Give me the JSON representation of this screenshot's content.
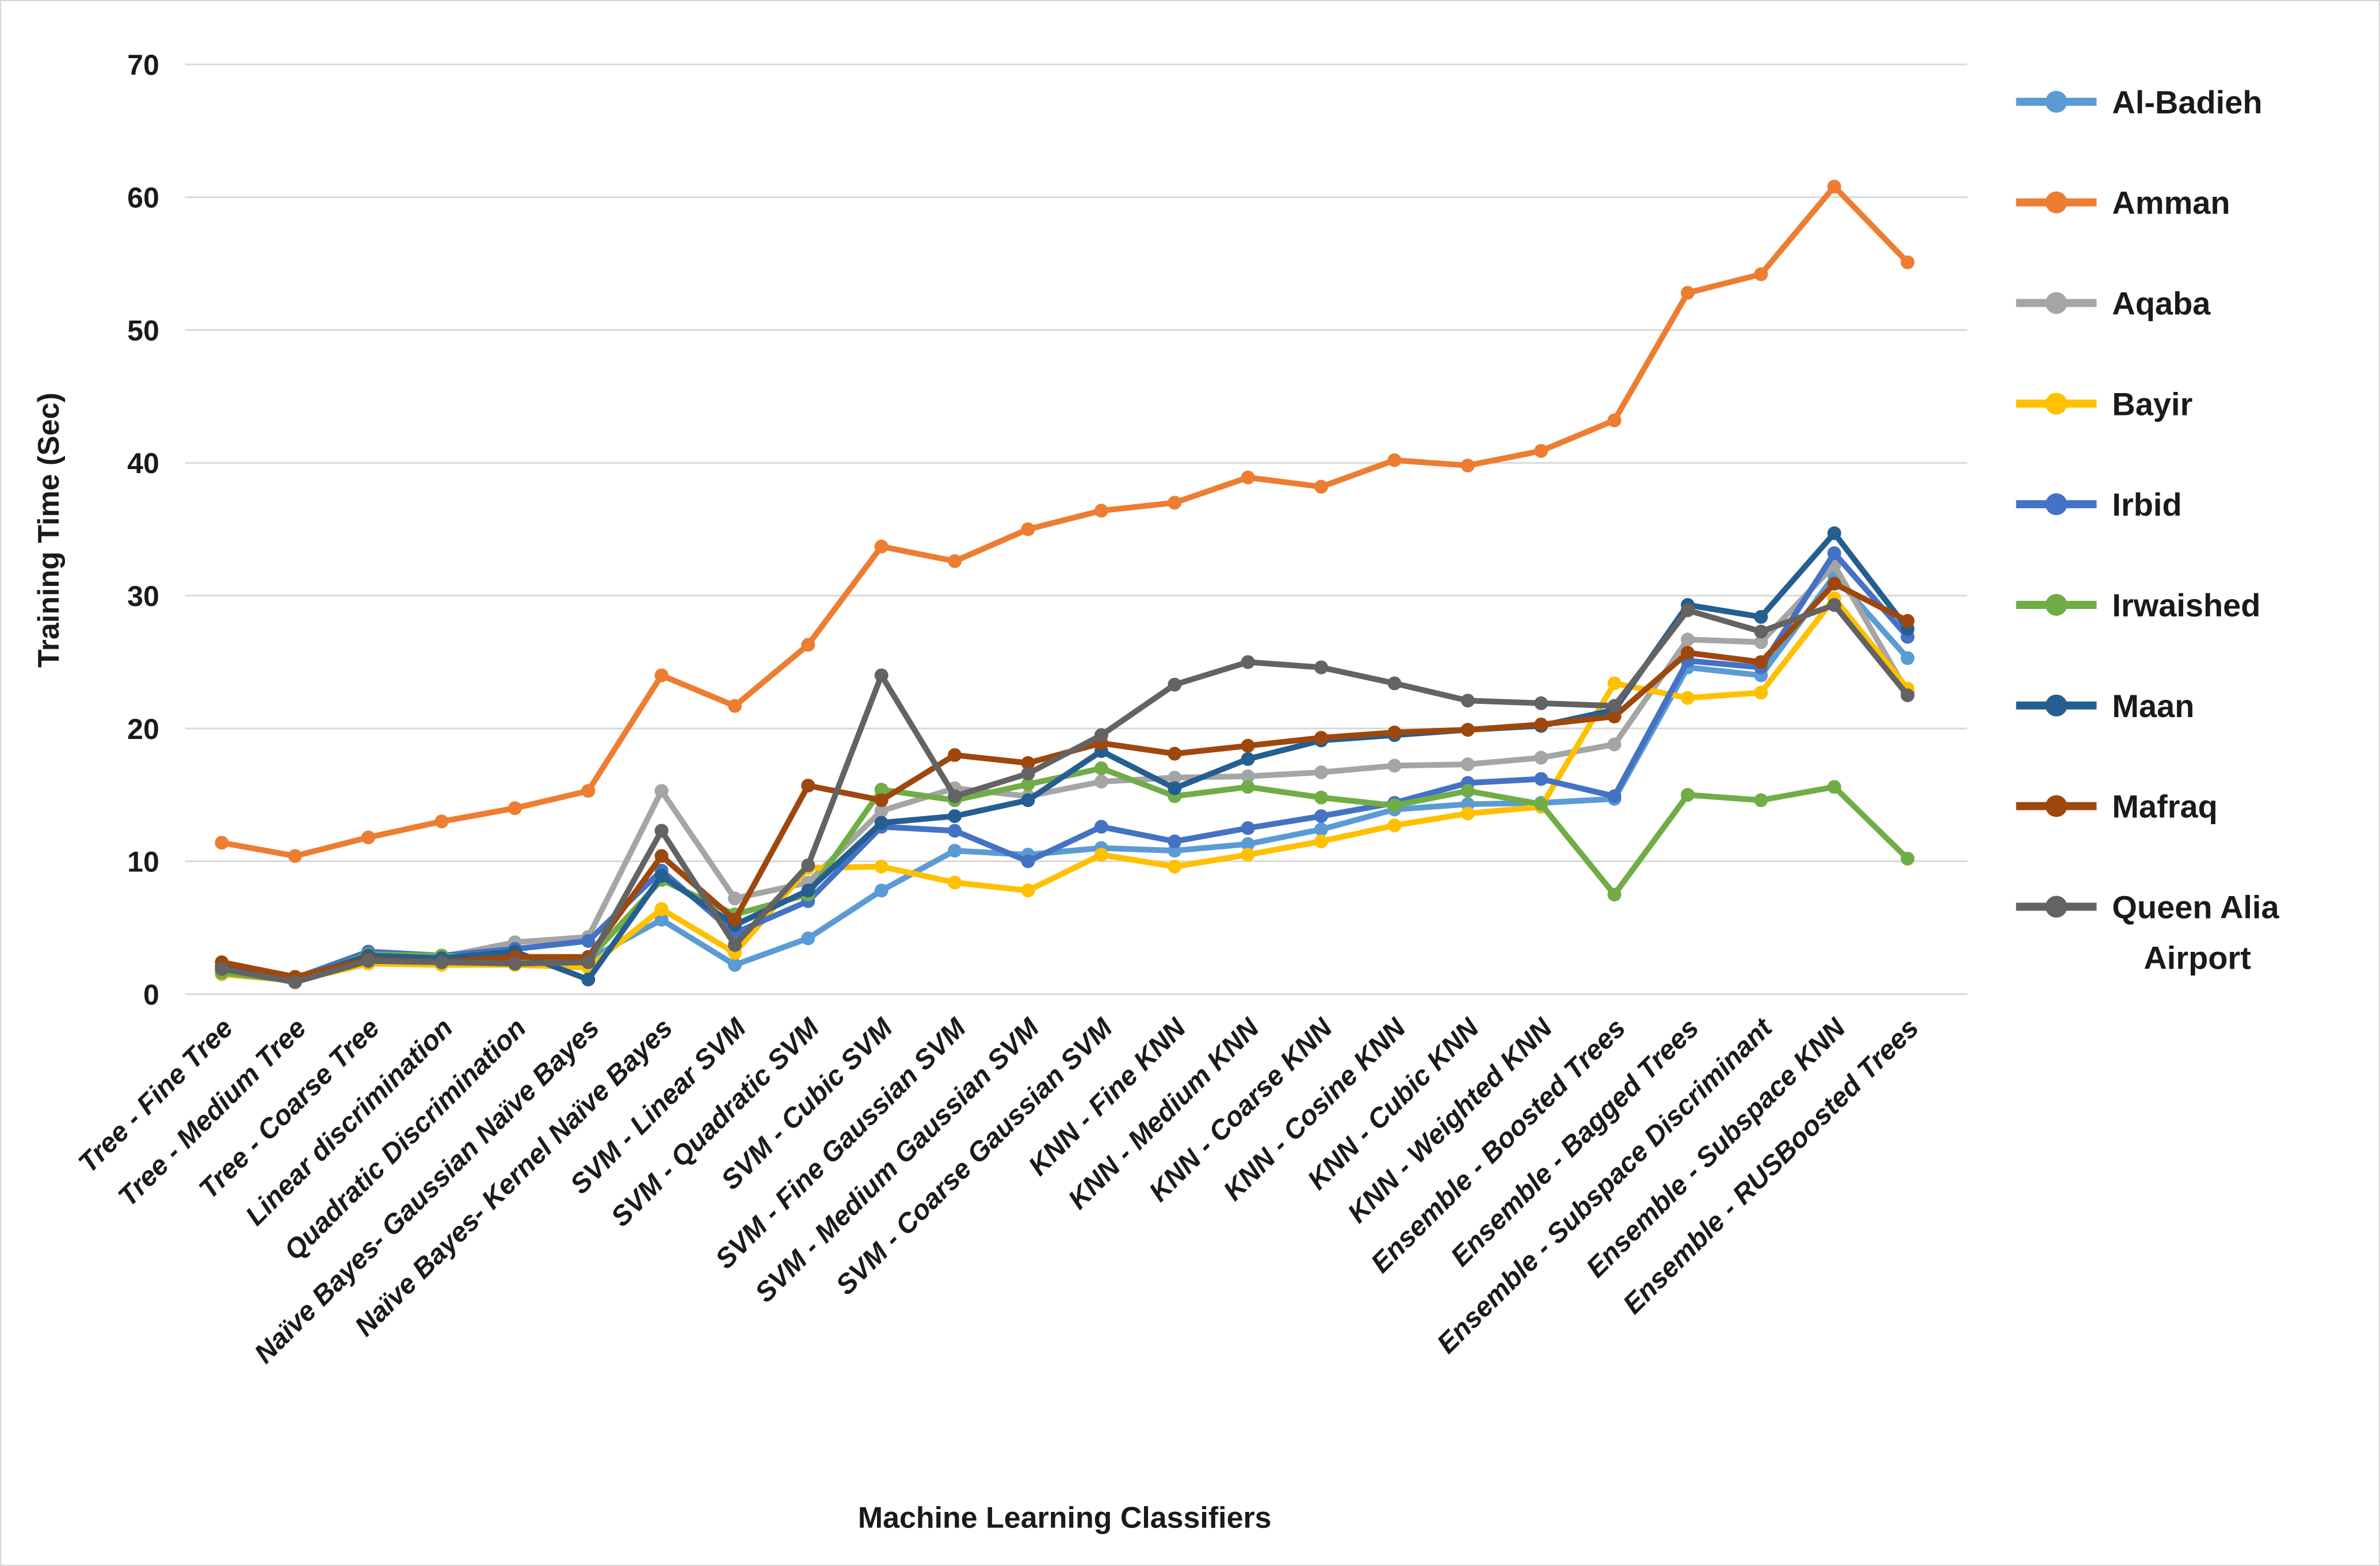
{
  "figure": {
    "background": "#FFFFFF",
    "border_color": "#D6D6D6",
    "gridline_color": "#D9D9D9",
    "text_color": "#1A1A1A"
  },
  "chart_data": {
    "type": "line",
    "title": "",
    "xlabel": "Machine Learning Classifiers",
    "ylabel": "Training Time (Sec)",
    "ylim": [
      0,
      70
    ],
    "y_ticks": [
      0,
      10,
      20,
      30,
      40,
      50,
      60,
      70
    ],
    "grid": "horizontal",
    "legend_position": "right",
    "marker": "circle",
    "categories": [
      "Tree - Fine Tree",
      "Tree - Medium Tree",
      "Tree - Coarse Tree",
      "Linear discrimination",
      "Quadratic Discrimination",
      "Naïve Bayes- Gaussian Naïve Bayes",
      "Naïve Bayes- Kernel Naïve Bayes",
      "SVM - Linear SVM",
      "SVM - Quadratic SVM",
      "SVM - Cubic SVM",
      "SVM - Fine Gaussian SVM",
      "SVM - Medium Gaussian SVM",
      "SVM - Coarse Gaussian SVM",
      "KNN - Fine KNN",
      "KNN - Medium KNN",
      "KNN - Coarse KNN",
      "KNN - Cosine KNN",
      "KNN - Cubic KNN",
      "KNN - Weighted KNN",
      "Ensemble - Boosted Trees",
      "Ensemble - Bagged Trees",
      "Ensemble - Subspace Discriminant",
      "Ensemble - Subspace KNN",
      "Ensemble - RUSBoosted Trees"
    ],
    "series": [
      {
        "name": "Al-Badieh",
        "color": "#5B9BD5",
        "values": [
          1.9,
          1.1,
          2.8,
          2.6,
          2.4,
          2.6,
          5.6,
          2.2,
          4.2,
          7.8,
          10.8,
          10.5,
          11.0,
          10.8,
          11.3,
          12.4,
          13.9,
          14.3,
          14.4,
          14.7,
          24.6,
          24.0,
          31.5,
          25.3
        ]
      },
      {
        "name": "Amman",
        "color": "#ED7D31",
        "values": [
          11.4,
          10.4,
          11.8,
          13.0,
          14.0,
          15.3,
          24.0,
          21.7,
          26.3,
          33.7,
          32.6,
          35.0,
          36.4,
          37.0,
          38.9,
          38.2,
          40.2,
          39.8,
          40.9,
          43.2,
          52.8,
          54.2,
          60.8,
          55.1
        ]
      },
      {
        "name": "Aqaba",
        "color": "#A5A5A5",
        "values": [
          1.8,
          1.2,
          2.9,
          2.8,
          3.9,
          4.3,
          15.3,
          7.2,
          8.4,
          13.8,
          15.5,
          14.9,
          16.0,
          16.3,
          16.4,
          16.7,
          17.2,
          17.3,
          17.8,
          18.8,
          26.7,
          26.5,
          32.3,
          22.7
        ]
      },
      {
        "name": "Bayir",
        "color": "#FFC000",
        "values": [
          1.5,
          1.0,
          2.3,
          2.2,
          2.2,
          2.0,
          6.4,
          3.1,
          9.5,
          9.6,
          8.4,
          7.8,
          10.5,
          9.6,
          10.5,
          11.5,
          12.7,
          13.6,
          14.1,
          23.4,
          22.3,
          22.7,
          29.8,
          23.0
        ]
      },
      {
        "name": "Irbid",
        "color": "#4472C4",
        "values": [
          2.1,
          1.2,
          3.2,
          2.9,
          3.4,
          4.0,
          9.3,
          4.6,
          7.0,
          12.6,
          12.3,
          10.0,
          12.6,
          11.5,
          12.5,
          13.4,
          14.4,
          15.9,
          16.2,
          14.9,
          25.1,
          24.6,
          33.2,
          26.9
        ]
      },
      {
        "name": "Irwaished",
        "color": "#70AD47",
        "values": [
          1.6,
          1.0,
          3.0,
          2.9,
          2.6,
          2.6,
          8.6,
          6.0,
          7.5,
          15.4,
          14.6,
          15.8,
          17.0,
          14.9,
          15.6,
          14.8,
          14.2,
          15.3,
          14.3,
          7.5,
          15.0,
          14.6,
          15.6,
          10.2
        ]
      },
      {
        "name": "Maan",
        "color": "#255E91",
        "values": [
          2.0,
          1.1,
          2.9,
          2.7,
          3.2,
          1.1,
          8.9,
          5.2,
          7.8,
          12.9,
          13.4,
          14.6,
          18.3,
          15.5,
          17.7,
          19.1,
          19.5,
          19.9,
          20.2,
          21.4,
          29.3,
          28.4,
          34.7,
          27.5
        ]
      },
      {
        "name": "Mafraq",
        "color": "#9E480E",
        "values": [
          2.4,
          1.3,
          2.6,
          2.4,
          2.8,
          2.8,
          10.4,
          5.6,
          15.7,
          14.6,
          18.0,
          17.4,
          18.9,
          18.1,
          18.7,
          19.3,
          19.7,
          19.9,
          20.3,
          20.9,
          25.7,
          25.0,
          30.9,
          28.1
        ]
      },
      {
        "name": "Queen Alia Airport",
        "color": "#636363",
        "values": [
          1.9,
          0.9,
          2.5,
          2.4,
          2.3,
          2.4,
          12.3,
          3.7,
          9.7,
          24.0,
          14.9,
          16.6,
          19.5,
          23.3,
          25.0,
          24.6,
          23.4,
          22.1,
          21.9,
          21.7,
          28.9,
          27.3,
          29.3,
          22.5
        ]
      }
    ]
  }
}
